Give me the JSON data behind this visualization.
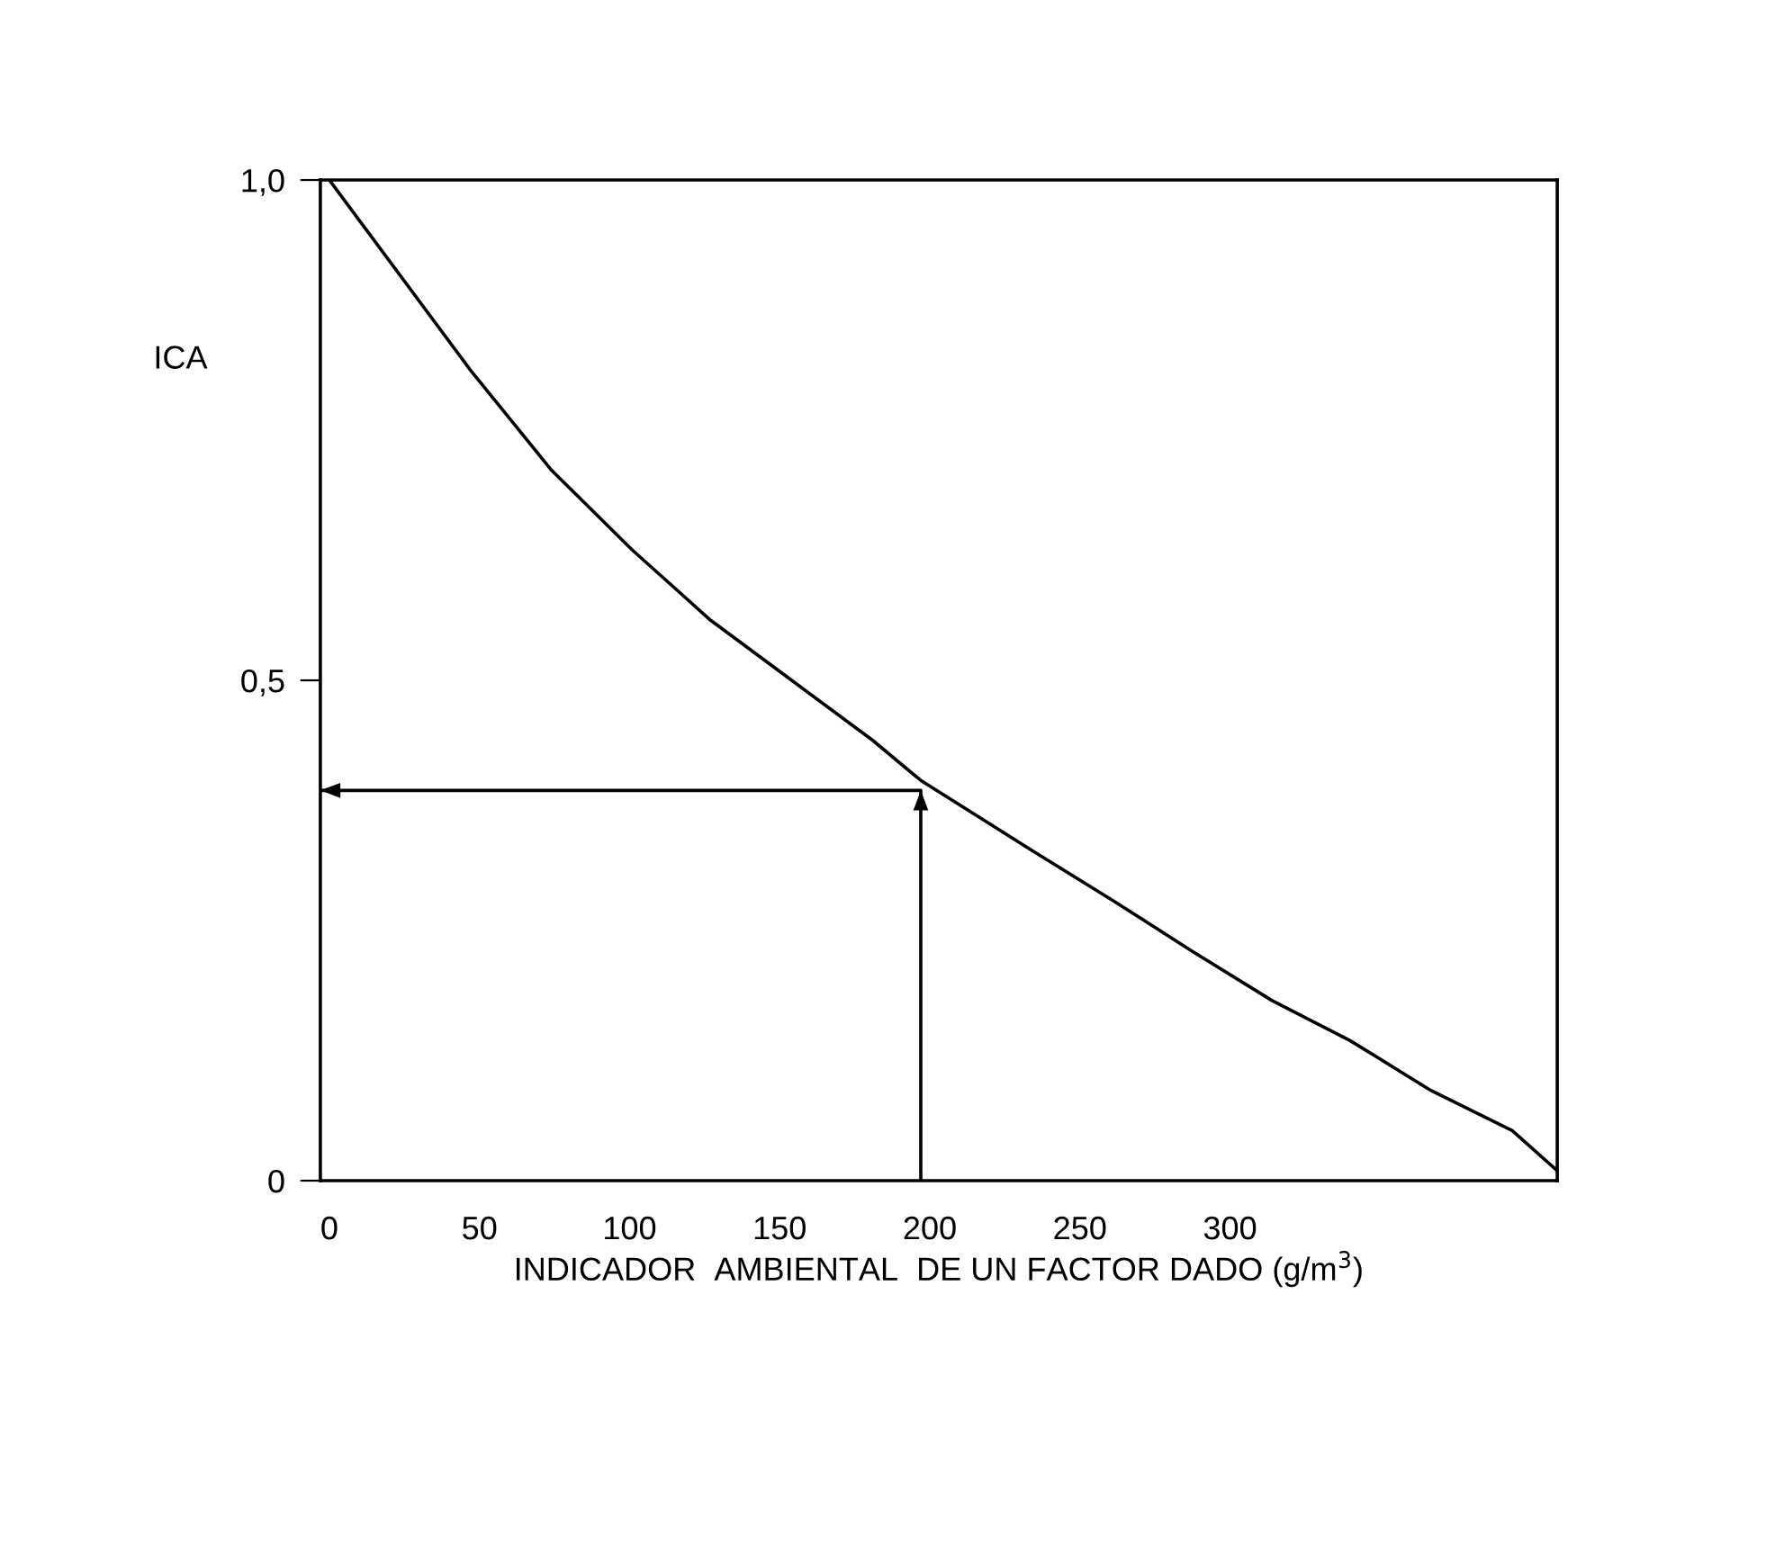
{
  "chart_data": {
    "type": "line",
    "xlabel": "INDICADOR  AMBIENTAL  DE UN FACTOR DADO (g/m$^{3}$)",
    "ylabel": "ICA",
    "xlim": [
      -3,
      409
    ],
    "ylim": [
      0,
      1
    ],
    "xticks": [
      0,
      50,
      100,
      150,
      200,
      250,
      300
    ],
    "yticks": [
      {
        "value": 0,
        "label": "0"
      },
      {
        "value": 0.5,
        "label": "0,5"
      },
      {
        "value": 1,
        "label": "1,0"
      }
    ],
    "grid": false,
    "legend": false,
    "marker": "none",
    "line_style": "solid",
    "series": [
      {
        "color": "#000000",
        "x": [
          0,
          47,
          74,
          101,
          127,
          154,
          181,
          197,
          234,
          261,
          287,
          314,
          340,
          367,
          394,
          409
        ],
        "values": [
          1.0,
          0.81,
          0.71,
          0.63,
          0.56,
          0.5,
          0.44,
          0.4,
          0.33,
          0.28,
          0.23,
          0.18,
          0.14,
          0.09,
          0.05,
          0.01
        ]
      },
      {
        "color": "#000000",
        "x": [
          197,
          197,
          -3
        ],
        "values": [
          0,
          0.39,
          0.39
        ]
      }
    ]
  }
}
